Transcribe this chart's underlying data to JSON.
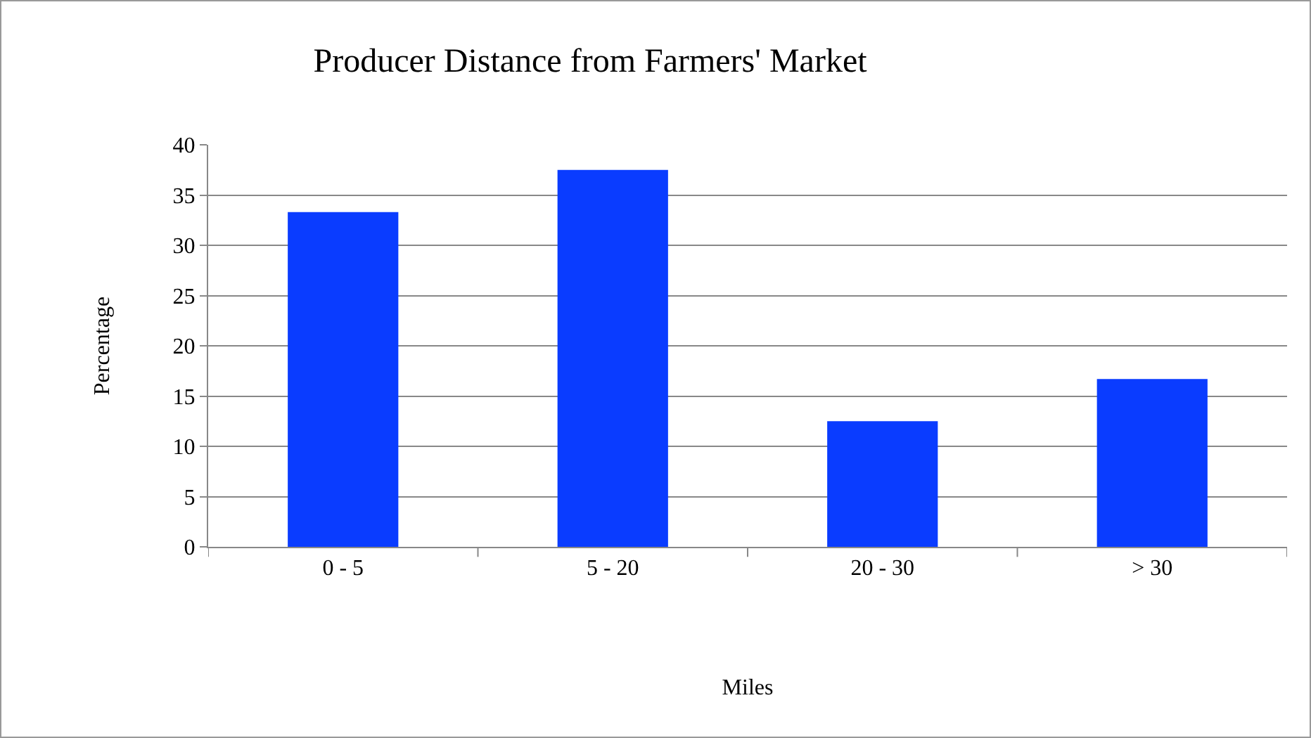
{
  "chart_data": {
    "type": "bar",
    "title": "Producer Distance from Farmers' Market",
    "xlabel": "Miles",
    "ylabel": "Percentage",
    "categories": [
      "0 - 5",
      "5 - 20",
      "20 - 30",
      "> 30"
    ],
    "values": [
      33.3,
      37.5,
      12.5,
      16.7
    ],
    "color": "#0a3cff",
    "ylim": [
      0,
      40
    ],
    "yticks": [
      0,
      5,
      10,
      15,
      20,
      25,
      30,
      35,
      40
    ],
    "grid": "y",
    "legend": false
  }
}
